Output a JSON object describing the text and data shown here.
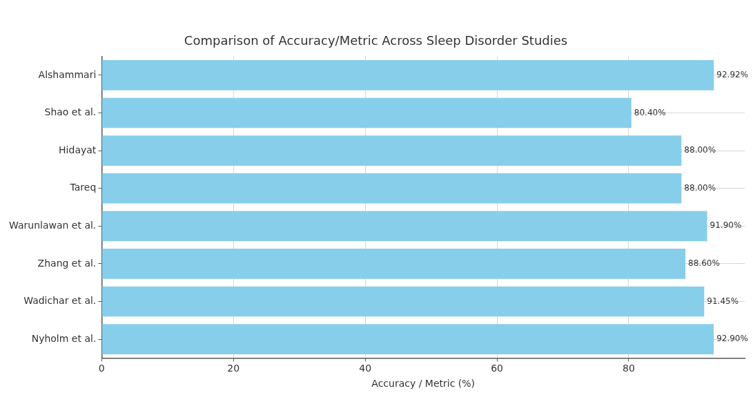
{
  "chart_data": {
    "type": "bar",
    "orientation": "horizontal",
    "title": "Comparison of Accuracy/Metric Across Sleep Disorder Studies",
    "xlabel": "Accuracy / Metric (%)",
    "categories": [
      "Alshammari",
      "Shao et al.",
      "Hidayat",
      "Tareq",
      "Warunlawan et al.",
      "Zhang et al.",
      "Wadichar et al.",
      "Nyholm et al."
    ],
    "values": [
      92.92,
      80.4,
      88.0,
      88.0,
      91.9,
      88.6,
      91.45,
      92.9
    ],
    "value_labels": [
      "92.92%",
      "80.40%",
      "88.00%",
      "88.00%",
      "91.90%",
      "88.60%",
      "91.45%",
      "92.90%"
    ],
    "color": "#87ceeb",
    "xlim": [
      0,
      97.6
    ],
    "xticks": [
      0,
      20,
      40,
      60,
      80
    ],
    "grid": true
  }
}
